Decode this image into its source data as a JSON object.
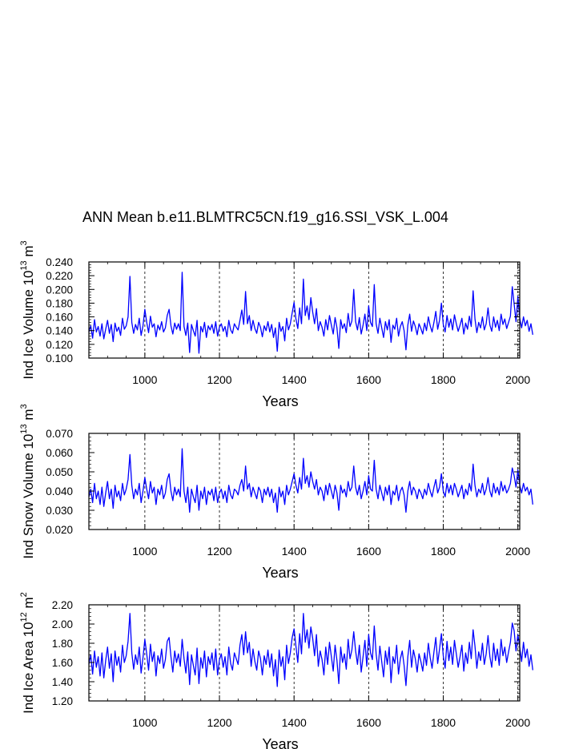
{
  "figure_title": "ANN Mean b.e11.BLMTRC5CN.f19_g16.SSI_VSK_L.004",
  "series_color": "#0000ff",
  "chart_data": [
    {
      "type": "line",
      "ylabel_main": "Ind Ice Volume 10",
      "ylabel_exp": "13",
      "ylabel_unit": "m",
      "ylabel_unit_exp": "3",
      "xlabel": "Years",
      "xlim": [
        850,
        2005
      ],
      "ylim": [
        0.1,
        0.24
      ],
      "xticks": [
        "1000",
        "1200",
        "1400",
        "1600",
        "1800",
        "2000"
      ],
      "yticks": [
        "0.100",
        "0.120",
        "0.140",
        "0.160",
        "0.180",
        "0.200",
        "0.220",
        "0.240"
      ],
      "grid": "vertical dashed at major x ticks",
      "series": [
        {
          "x_start": 850,
          "x_end": 2005,
          "step": 5,
          "values": [
            0.138,
            0.147,
            0.129,
            0.156,
            0.138,
            0.146,
            0.132,
            0.15,
            0.128,
            0.142,
            0.155,
            0.136,
            0.149,
            0.124,
            0.151,
            0.139,
            0.145,
            0.133,
            0.158,
            0.142,
            0.147,
            0.16,
            0.219,
            0.152,
            0.136,
            0.149,
            0.141,
            0.158,
            0.133,
            0.147,
            0.171,
            0.152,
            0.137,
            0.161,
            0.145,
            0.15,
            0.131,
            0.148,
            0.141,
            0.153,
            0.138,
            0.144,
            0.162,
            0.171,
            0.147,
            0.135,
            0.151,
            0.142,
            0.15,
            0.14,
            0.225,
            0.146,
            0.133,
            0.151,
            0.108,
            0.149,
            0.14,
            0.132,
            0.155,
            0.107,
            0.146,
            0.138,
            0.152,
            0.13,
            0.147,
            0.141,
            0.149,
            0.136,
            0.153,
            0.132,
            0.145,
            0.15,
            0.139,
            0.146,
            0.131,
            0.155,
            0.141,
            0.136,
            0.15,
            0.145,
            0.141,
            0.155,
            0.17,
            0.149,
            0.197,
            0.15,
            0.162,
            0.14,
            0.155,
            0.143,
            0.136,
            0.152,
            0.145,
            0.131,
            0.147,
            0.14,
            0.153,
            0.138,
            0.149,
            0.13,
            0.144,
            0.11,
            0.152,
            0.139,
            0.146,
            0.125,
            0.158,
            0.141,
            0.15,
            0.166,
            0.181,
            0.157,
            0.143,
            0.173,
            0.15,
            0.215,
            0.162,
            0.176,
            0.156,
            0.188,
            0.167,
            0.15,
            0.172,
            0.14,
            0.153,
            0.145,
            0.132,
            0.156,
            0.141,
            0.162,
            0.148,
            0.135,
            0.159,
            0.144,
            0.114,
            0.156,
            0.143,
            0.15,
            0.137,
            0.165,
            0.146,
            0.154,
            0.2,
            0.153,
            0.141,
            0.159,
            0.135,
            0.148,
            0.164,
            0.14,
            0.176,
            0.152,
            0.146,
            0.207,
            0.15,
            0.136,
            0.158,
            0.144,
            0.13,
            0.153,
            0.141,
            0.156,
            0.123,
            0.148,
            0.142,
            0.158,
            0.132,
            0.146,
            0.153,
            0.14,
            0.112,
            0.148,
            0.164,
            0.139,
            0.154,
            0.146,
            0.134,
            0.15,
            0.143,
            0.135,
            0.151,
            0.14,
            0.16,
            0.147,
            0.138,
            0.152,
            0.168,
            0.142,
            0.155,
            0.18,
            0.149,
            0.138,
            0.162,
            0.145,
            0.157,
            0.141,
            0.163,
            0.15,
            0.139,
            0.148,
            0.158,
            0.135,
            0.151,
            0.142,
            0.161,
            0.146,
            0.198,
            0.157,
            0.137,
            0.152,
            0.144,
            0.16,
            0.141,
            0.15,
            0.173,
            0.148,
            0.139,
            0.16,
            0.145,
            0.155,
            0.14,
            0.164,
            0.149,
            0.157,
            0.143,
            0.152,
            0.161,
            0.204,
            0.179,
            0.153,
            0.19,
            0.158,
            0.144,
            0.16,
            0.147,
            0.155,
            0.139,
            0.15,
            0.134
          ]
        }
      ]
    },
    {
      "type": "line",
      "ylabel_main": "Ind Snow Volume 10",
      "ylabel_exp": "13",
      "ylabel_unit": "m",
      "ylabel_unit_exp": "3",
      "xlabel": "Years",
      "xlim": [
        850,
        2005
      ],
      "ylim": [
        0.02,
        0.07
      ],
      "xticks": [
        "1000",
        "1200",
        "1400",
        "1600",
        "1800",
        "2000"
      ],
      "yticks": [
        "0.020",
        "0.030",
        "0.040",
        "0.050",
        "0.060",
        "0.070"
      ],
      "grid": "vertical dashed at major x ticks",
      "series": [
        {
          "x_start": 850,
          "x_end": 2005,
          "step": 5,
          "values": [
            0.037,
            0.041,
            0.034,
            0.044,
            0.036,
            0.04,
            0.033,
            0.042,
            0.032,
            0.039,
            0.045,
            0.036,
            0.041,
            0.031,
            0.043,
            0.037,
            0.04,
            0.035,
            0.044,
            0.038,
            0.041,
            0.046,
            0.059,
            0.043,
            0.036,
            0.041,
            0.038,
            0.044,
            0.034,
            0.04,
            0.047,
            0.041,
            0.036,
            0.045,
            0.039,
            0.042,
            0.033,
            0.041,
            0.038,
            0.043,
            0.036,
            0.039,
            0.046,
            0.049,
            0.04,
            0.035,
            0.042,
            0.038,
            0.041,
            0.037,
            0.062,
            0.04,
            0.034,
            0.042,
            0.029,
            0.041,
            0.037,
            0.034,
            0.043,
            0.03,
            0.04,
            0.036,
            0.042,
            0.033,
            0.04,
            0.038,
            0.041,
            0.035,
            0.042,
            0.034,
            0.039,
            0.041,
            0.036,
            0.04,
            0.034,
            0.043,
            0.038,
            0.036,
            0.041,
            0.04,
            0.038,
            0.043,
            0.046,
            0.04,
            0.053,
            0.041,
            0.044,
            0.037,
            0.042,
            0.039,
            0.036,
            0.042,
            0.04,
            0.034,
            0.041,
            0.038,
            0.042,
            0.037,
            0.041,
            0.034,
            0.039,
            0.029,
            0.042,
            0.037,
            0.04,
            0.033,
            0.043,
            0.038,
            0.041,
            0.045,
            0.049,
            0.043,
            0.039,
            0.047,
            0.041,
            0.057,
            0.044,
            0.048,
            0.042,
            0.05,
            0.045,
            0.041,
            0.046,
            0.038,
            0.042,
            0.04,
            0.035,
            0.043,
            0.038,
            0.044,
            0.04,
            0.036,
            0.043,
            0.039,
            0.03,
            0.043,
            0.039,
            0.041,
            0.037,
            0.045,
            0.04,
            0.042,
            0.053,
            0.042,
            0.038,
            0.043,
            0.036,
            0.04,
            0.045,
            0.038,
            0.048,
            0.041,
            0.04,
            0.056,
            0.041,
            0.036,
            0.043,
            0.039,
            0.035,
            0.042,
            0.038,
            0.043,
            0.033,
            0.04,
            0.038,
            0.043,
            0.035,
            0.04,
            0.042,
            0.038,
            0.029,
            0.04,
            0.045,
            0.038,
            0.042,
            0.04,
            0.036,
            0.041,
            0.039,
            0.036,
            0.041,
            0.038,
            0.044,
            0.04,
            0.037,
            0.042,
            0.046,
            0.039,
            0.042,
            0.049,
            0.04,
            0.037,
            0.044,
            0.039,
            0.043,
            0.038,
            0.044,
            0.041,
            0.037,
            0.04,
            0.043,
            0.036,
            0.041,
            0.038,
            0.044,
            0.04,
            0.054,
            0.043,
            0.037,
            0.041,
            0.039,
            0.044,
            0.038,
            0.041,
            0.047,
            0.04,
            0.037,
            0.044,
            0.039,
            0.042,
            0.038,
            0.045,
            0.04,
            0.043,
            0.039,
            0.041,
            0.044,
            0.052,
            0.048,
            0.042,
            0.051,
            0.043,
            0.039,
            0.044,
            0.04,
            0.042,
            0.038,
            0.041,
            0.033
          ]
        }
      ]
    },
    {
      "type": "line",
      "ylabel_main": "Ind Ice Area 10",
      "ylabel_exp": "12",
      "ylabel_unit": "m",
      "ylabel_unit_exp": "2",
      "xlabel": "Years",
      "xlim": [
        850,
        2005
      ],
      "ylim": [
        1.2,
        2.2
      ],
      "xticks": [
        "1000",
        "1200",
        "1400",
        "1600",
        "1800",
        "2000"
      ],
      "yticks": [
        "1.20",
        "1.40",
        "1.60",
        "1.80",
        "2.00",
        "2.20"
      ],
      "grid": "vertical dashed at major x ticks",
      "series": [
        {
          "x_start": 850,
          "x_end": 2005,
          "step": 5,
          "values": [
            1.58,
            1.68,
            1.48,
            1.72,
            1.55,
            1.66,
            1.46,
            1.7,
            1.44,
            1.62,
            1.76,
            1.54,
            1.69,
            1.4,
            1.72,
            1.57,
            1.66,
            1.5,
            1.78,
            1.6,
            1.67,
            1.82,
            2.11,
            1.7,
            1.53,
            1.68,
            1.58,
            1.76,
            1.49,
            1.65,
            1.84,
            1.69,
            1.52,
            1.79,
            1.61,
            1.71,
            1.46,
            1.67,
            1.59,
            1.74,
            1.54,
            1.63,
            1.82,
            1.86,
            1.66,
            1.5,
            1.72,
            1.6,
            1.69,
            1.56,
            1.84,
            1.64,
            1.49,
            1.71,
            1.37,
            1.68,
            1.57,
            1.47,
            1.75,
            1.38,
            1.65,
            1.54,
            1.72,
            1.45,
            1.66,
            1.58,
            1.7,
            1.52,
            1.74,
            1.47,
            1.63,
            1.69,
            1.55,
            1.66,
            1.47,
            1.76,
            1.59,
            1.52,
            1.7,
            1.64,
            1.58,
            1.78,
            1.89,
            1.68,
            1.92,
            1.7,
            1.81,
            1.56,
            1.74,
            1.61,
            1.52,
            1.72,
            1.64,
            1.47,
            1.67,
            1.58,
            1.73,
            1.55,
            1.69,
            1.46,
            1.63,
            1.35,
            1.73,
            1.56,
            1.66,
            1.42,
            1.78,
            1.59,
            1.7,
            1.86,
            1.95,
            1.77,
            1.6,
            1.9,
            1.69,
            2.11,
            1.81,
            1.94,
            1.75,
            1.97,
            1.85,
            1.67,
            1.89,
            1.56,
            1.72,
            1.63,
            1.47,
            1.76,
            1.58,
            1.81,
            1.66,
            1.51,
            1.78,
            1.62,
            1.38,
            1.76,
            1.6,
            1.69,
            1.53,
            1.84,
            1.64,
            1.73,
            1.92,
            1.72,
            1.58,
            1.78,
            1.5,
            1.66,
            1.83,
            1.56,
            1.89,
            1.7,
            1.63,
            1.98,
            1.69,
            1.52,
            1.77,
            1.61,
            1.45,
            1.72,
            1.58,
            1.76,
            1.39,
            1.66,
            1.59,
            1.78,
            1.48,
            1.64,
            1.72,
            1.57,
            1.36,
            1.66,
            1.83,
            1.55,
            1.73,
            1.64,
            1.5,
            1.69,
            1.61,
            1.51,
            1.7,
            1.57,
            1.8,
            1.65,
            1.54,
            1.71,
            1.86,
            1.59,
            1.74,
            1.9,
            1.67,
            1.54,
            1.82,
            1.62,
            1.76,
            1.58,
            1.83,
            1.69,
            1.55,
            1.66,
            1.78,
            1.51,
            1.7,
            1.59,
            1.81,
            1.64,
            1.94,
            1.77,
            1.54,
            1.71,
            1.62,
            1.8,
            1.58,
            1.69,
            1.88,
            1.66,
            1.55,
            1.8,
            1.62,
            1.74,
            1.57,
            1.84,
            1.67,
            1.76,
            1.6,
            1.71,
            1.81,
            2.01,
            1.93,
            1.72,
            1.89,
            1.76,
            1.61,
            1.81,
            1.65,
            1.74,
            1.56,
            1.68,
            1.52
          ]
        }
      ]
    }
  ]
}
